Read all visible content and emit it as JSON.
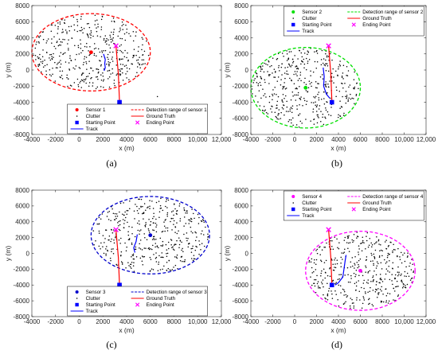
{
  "chart_data": [
    {
      "type": "scatter",
      "caption": "(a)",
      "xlabel": "x (m)",
      "ylabel": "y (m)",
      "xlim": [
        -4000,
        12000
      ],
      "ylim": [
        -8000,
        8000
      ],
      "xticks": [
        -4000,
        -2000,
        0,
        2000,
        4000,
        6000,
        8000,
        10000,
        12000
      ],
      "xtick_labels": [
        "-4000",
        "-2000",
        "0",
        "2000",
        "4000",
        "6000",
        "8000",
        "10,000",
        "12,000"
      ],
      "yticks": [
        -8000,
        -6000,
        -4000,
        -2000,
        0,
        2000,
        4000,
        6000,
        8000
      ],
      "ytick_labels": [
        "-8000",
        "-6000",
        "-4000",
        "-2000",
        "0",
        "2000",
        "4000",
        "6000",
        "8000"
      ],
      "legend": {
        "placement": "bottom-center",
        "labels": [
          "Sensor 1",
          "Detection range of sensor 1",
          "Clutter",
          "Ground Truth",
          "Starting Point",
          "Ending Point",
          "Track"
        ]
      },
      "sensor": {
        "x": 1000,
        "y": 2200
      },
      "detection_range": {
        "cx": 1000,
        "cy": 2200,
        "rx": 5000,
        "ry": 4800
      },
      "start": {
        "x": 3400,
        "y": -4000
      },
      "end": {
        "x": 3100,
        "y": 3000
      },
      "ground_truth": [
        [
          3400,
          -4000
        ],
        [
          3300,
          -500
        ],
        [
          3100,
          3000
        ]
      ],
      "track": [
        [
          2050,
          2000
        ],
        [
          2200,
          1300
        ],
        [
          2150,
          800
        ],
        [
          2200,
          300
        ],
        [
          2100,
          -100
        ]
      ],
      "clutter_count": 430,
      "clutter_extra": [
        [
          6600,
          -3300
        ]
      ],
      "color": "#ff0000",
      "marker_color": "#ff0000"
    },
    {
      "type": "scatter",
      "caption": "(b)",
      "xlabel": "x (m)",
      "ylabel": "y (m)",
      "xlim": [
        -4000,
        12000
      ],
      "ylim": [
        -8000,
        8000
      ],
      "xticks": [
        -4000,
        -2000,
        0,
        2000,
        4000,
        6000,
        8000,
        10000,
        12000
      ],
      "xtick_labels": [
        "-4000",
        "-2000",
        "0",
        "2000",
        "4000",
        "6000",
        "8000",
        "10,000",
        "12,000"
      ],
      "yticks": [
        -8000,
        -6000,
        -4000,
        -2000,
        0,
        2000,
        4000,
        6000,
        8000
      ],
      "ytick_labels": [
        "-8000",
        "-6000",
        "-4000",
        "-2000",
        "0",
        "2000",
        "4000",
        "6000",
        "8000"
      ],
      "legend": {
        "placement": "top-center",
        "labels": [
          "Sensor 2",
          "Detection range of sensor 2",
          "Clutter",
          "Ground Truth",
          "Starting Point",
          "Ending Point",
          "Track"
        ]
      },
      "sensor": {
        "x": 1000,
        "y": -2200
      },
      "detection_range": {
        "cx": 1000,
        "cy": -2200,
        "rx": 5000,
        "ry": 5000
      },
      "start": {
        "x": 3400,
        "y": -4000
      },
      "end": {
        "x": 3100,
        "y": 3000
      },
      "ground_truth": [
        [
          3400,
          -4000
        ],
        [
          3300,
          -500
        ],
        [
          3100,
          3000
        ]
      ],
      "track": [
        [
          2600,
          300
        ],
        [
          2700,
          -800
        ],
        [
          2650,
          -2000
        ],
        [
          2900,
          -3000
        ],
        [
          3200,
          -3500
        ]
      ],
      "clutter_count": 430,
      "clutter_extra": [],
      "color": "#00e000",
      "marker_color": "#00e000"
    },
    {
      "type": "scatter",
      "caption": "(c)",
      "xlabel": "x (m)",
      "ylabel": "y (m)",
      "xlim": [
        -4000,
        12000
      ],
      "ylim": [
        -8000,
        8000
      ],
      "xticks": [
        -4000,
        -2000,
        0,
        2000,
        4000,
        6000,
        8000,
        10000,
        12000
      ],
      "xtick_labels": [
        "-4000",
        "-2000",
        "0",
        "2000",
        "4000",
        "6000",
        "8000",
        "10,000",
        "12,000"
      ],
      "yticks": [
        -8000,
        -6000,
        -4000,
        -2000,
        0,
        2000,
        4000,
        6000,
        8000
      ],
      "ytick_labels": [
        "-8000",
        "-6000",
        "-4000",
        "-2000",
        "0",
        "2000",
        "4000",
        "6000",
        "8000"
      ],
      "legend": {
        "placement": "bottom-center",
        "labels": [
          "Sensor 3",
          "Detection range of sensor 3",
          "Clutter",
          "Ground Truth",
          "Starting Point",
          "Ending Point",
          "Track"
        ]
      },
      "sensor": {
        "x": 6000,
        "y": 2300
      },
      "detection_range": {
        "cx": 6000,
        "cy": 2300,
        "rx": 5000,
        "ry": 4900
      },
      "start": {
        "x": 3400,
        "y": -4000
      },
      "end": {
        "x": 3100,
        "y": 3000
      },
      "ground_truth": [
        [
          3100,
          3000
        ],
        [
          3300,
          -500
        ],
        [
          3400,
          -4000
        ]
      ],
      "track": [
        [
          4900,
          2400
        ],
        [
          4800,
          1500
        ],
        [
          4600,
          700
        ],
        [
          4700,
          100
        ]
      ],
      "clutter_count": 430,
      "clutter_extra": [],
      "color": "#0000cc",
      "marker_color": "#0000cc"
    },
    {
      "type": "scatter",
      "caption": "(d)",
      "xlabel": "x (m)",
      "ylabel": "y (m)",
      "xlim": [
        -4000,
        12000
      ],
      "ylim": [
        -8000,
        8000
      ],
      "xticks": [
        -4000,
        -2000,
        0,
        2000,
        4000,
        6000,
        8000,
        10000,
        12000
      ],
      "xtick_labels": [
        "-4000",
        "-2000",
        "0",
        "2000",
        "4000",
        "6000",
        "8000",
        "10,000",
        "12,000"
      ],
      "yticks": [
        -8000,
        -6000,
        -4000,
        -2000,
        0,
        2000,
        4000,
        6000,
        8000
      ],
      "ytick_labels": [
        "-8000",
        "-6000",
        "-4000",
        "-2000",
        "0",
        "2000",
        "4000",
        "6000",
        "8000"
      ],
      "legend": {
        "placement": "top-center",
        "labels": [
          "Sensor 4",
          "Detection range of sensor 4",
          "Clutter",
          "Ground Truth",
          "Starting Point",
          "Ending Point",
          "Track"
        ]
      },
      "sensor": {
        "x": 6000,
        "y": -2200
      },
      "detection_range": {
        "cx": 6000,
        "cy": -2200,
        "rx": 5000,
        "ry": 5000
      },
      "start": {
        "x": 3400,
        "y": -4000
      },
      "end": {
        "x": 3100,
        "y": 3000
      },
      "ground_truth": [
        [
          3100,
          3000
        ],
        [
          3300,
          -500
        ],
        [
          3400,
          -4000
        ]
      ],
      "track": [
        [
          4700,
          -200
        ],
        [
          4600,
          -1000
        ],
        [
          4500,
          -2000
        ],
        [
          4400,
          -3000
        ],
        [
          4000,
          -3700
        ],
        [
          3700,
          -4000
        ]
      ],
      "clutter_count": 430,
      "clutter_extra": [],
      "color": "#ff00ff",
      "marker_color": "#ff00ff"
    }
  ],
  "style": {
    "ground_truth_color": "#ff0000",
    "track_color": "#0000ff",
    "start_color": "#0000ff",
    "end_color": "#ff00ff",
    "clutter_color": "#000000"
  }
}
